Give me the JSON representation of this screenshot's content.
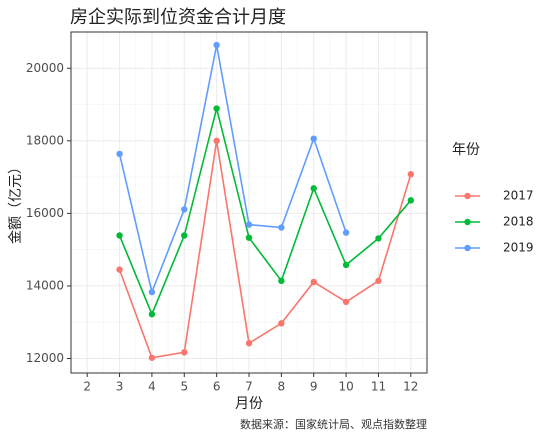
{
  "chart_data": {
    "type": "line",
    "title": "房企实际到位资金合计月度",
    "x_label": "月份",
    "y_label": "金额（亿元）",
    "caption": "数据来源：国家统计局、观点指数整理",
    "legend_title": "年份",
    "legend_position": "right",
    "grid": true,
    "x": [
      3,
      4,
      5,
      6,
      7,
      8,
      9,
      10,
      11,
      12
    ],
    "series": [
      {
        "name": "2017",
        "color": "#F8766D",
        "values": [
          14450,
          12020,
          12170,
          18000,
          12420,
          12970,
          14110,
          13560,
          14140,
          17080
        ]
      },
      {
        "name": "2018",
        "color": "#00BA38",
        "values": [
          15390,
          13220,
          15390,
          18890,
          15330,
          14140,
          16690,
          14580,
          15310,
          16360
        ]
      },
      {
        "name": "2019",
        "color": "#619CFF",
        "values": [
          17640,
          13830,
          16110,
          20640,
          15690,
          15610,
          18060,
          15470,
          null,
          null
        ]
      }
    ],
    "xlim": [
      1.5,
      12.5
    ],
    "xticks": [
      2,
      3,
      4,
      5,
      6,
      7,
      8,
      9,
      10,
      11,
      12
    ],
    "ylim": [
      11600,
      21000
    ],
    "yticks": [
      12000,
      14000,
      16000,
      18000,
      20000
    ]
  }
}
